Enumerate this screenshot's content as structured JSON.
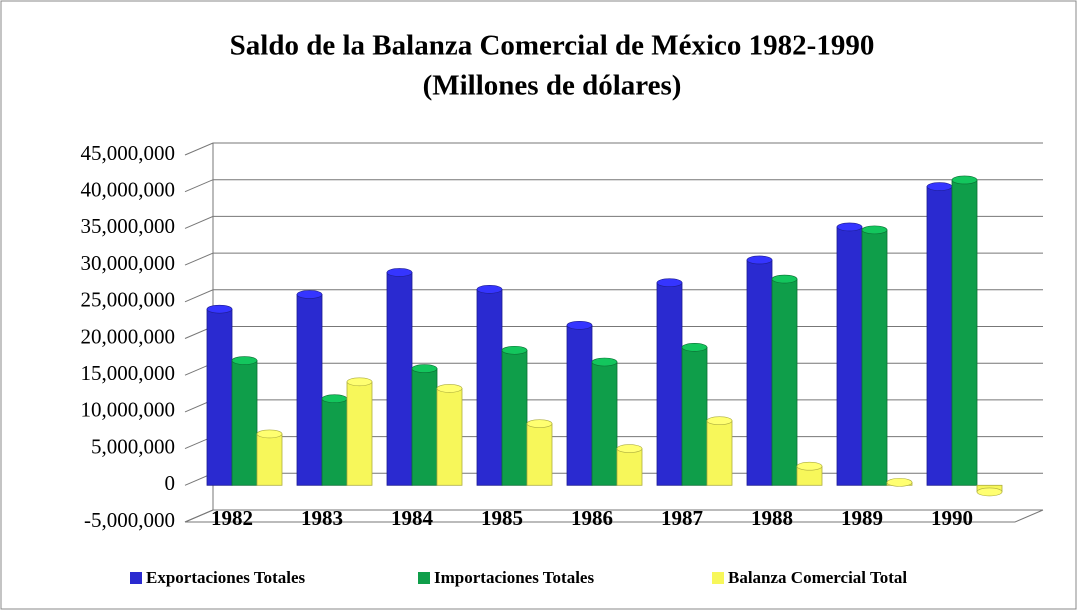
{
  "chart_data": {
    "type": "bar",
    "title": "Saldo de la Balanza Comercial de México 1982-1990",
    "subtitle": "(Millones de dólares)",
    "categories": [
      "1982",
      "1983",
      "1984",
      "1985",
      "1986",
      "1987",
      "1988",
      "1989",
      "1990"
    ],
    "series": [
      {
        "name": "Exportaciones Totales",
        "color": "#2a2ad0",
        "values": [
          24000000,
          26000000,
          29000000,
          26700000,
          21800000,
          27600000,
          30700000,
          35200000,
          40700000
        ]
      },
      {
        "name": "Importaciones Totales",
        "color": "#0f9e4a",
        "values": [
          17000000,
          11800000,
          15900000,
          18400000,
          16800000,
          18800000,
          28100000,
          34800000,
          41600000
        ]
      },
      {
        "name": "Balanza Comercial Total",
        "color": "#f7f75a",
        "values": [
          7000000,
          14100000,
          13200000,
          8400000,
          5000000,
          8800000,
          2600000,
          400000,
          -900000
        ]
      }
    ],
    "ylim": [
      -5000000,
      45000000
    ],
    "yticks": [
      {
        "value": -5000000,
        "label": "-5,000,000"
      },
      0,
      {
        "value": 5000000,
        "label": "5,000,000"
      },
      {
        "value": 10000000,
        "label": "10,000,000"
      },
      {
        "value": 15000000,
        "label": "15,000,000"
      },
      {
        "value": 20000000,
        "label": "20,000,000"
      },
      {
        "value": 25000000,
        "label": "25,000,000"
      },
      {
        "value": 30000000,
        "label": "30,000,000"
      },
      {
        "value": 35000000,
        "label": "35,000,000"
      },
      {
        "value": 40000000,
        "label": "40,000,000"
      },
      {
        "value": 45000000,
        "label": "45,000,000"
      }
    ],
    "grid": true,
    "legend": "bottom"
  }
}
